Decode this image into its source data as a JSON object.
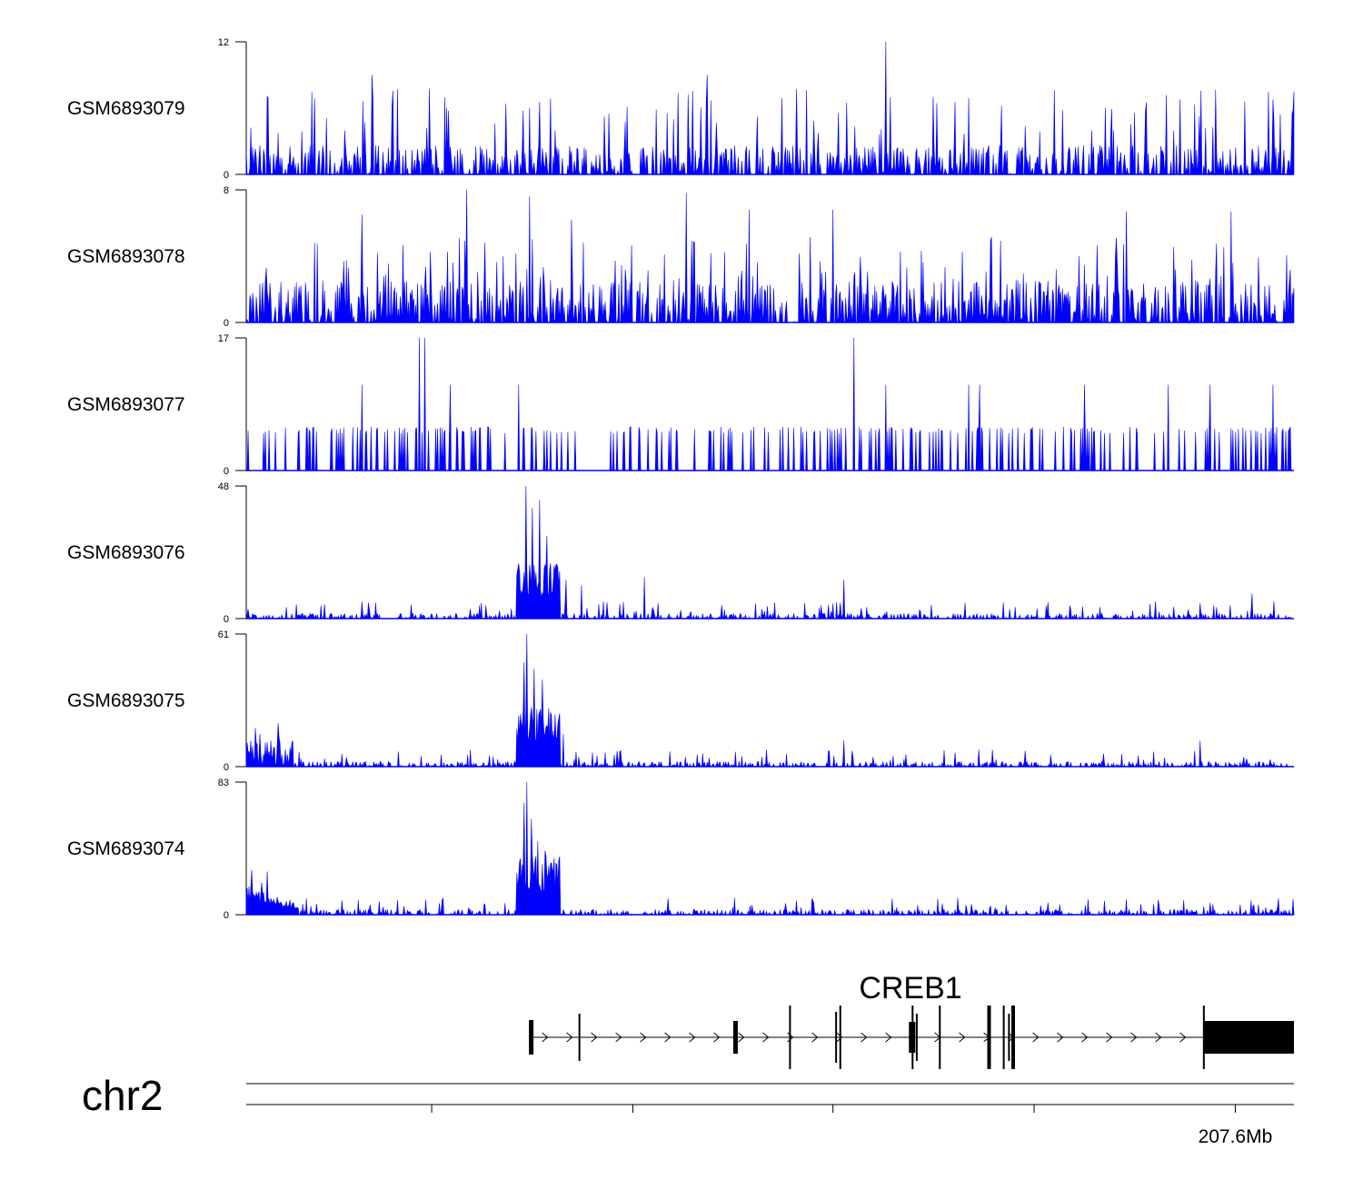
{
  "colors": {
    "signal": "#0000ff",
    "axis": "#000000",
    "gene": "#000000",
    "background": "#ffffff"
  },
  "chart_data": {
    "type": "area",
    "chromosome": "chr2",
    "coordinate_label": "207.6Mb",
    "tracks": [
      {
        "name": "GSM6893079",
        "ymax": "12",
        "ymin": "0",
        "ymax_value": 12,
        "peaks": [
          [
            0.12,
            9
          ],
          [
            0.27,
            6
          ],
          [
            0.44,
            9
          ],
          [
            0.61,
            12
          ],
          [
            0.615,
            7
          ],
          [
            0.82,
            6
          ],
          [
            1.0,
            7.5
          ]
        ]
      },
      {
        "name": "GSM6893078",
        "ymax": "8",
        "ymin": "0",
        "ymax_value": 8,
        "peaks": [
          [
            0.11,
            6.5
          ],
          [
            0.21,
            8
          ],
          [
            0.27,
            7.6
          ],
          [
            0.31,
            6.2
          ],
          [
            0.42,
            7.8
          ],
          [
            0.48,
            6.8
          ],
          [
            0.56,
            6.8
          ],
          [
            0.84,
            6.7
          ],
          [
            0.94,
            6.7
          ]
        ]
      },
      {
        "name": "GSM6893077",
        "ymax": "17",
        "ymin": "0",
        "ymax_value": 17,
        "peaks": [
          [
            0.11,
            11
          ],
          [
            0.165,
            17
          ],
          [
            0.17,
            17
          ],
          [
            0.195,
            11
          ],
          [
            0.26,
            11
          ],
          [
            0.58,
            17
          ],
          [
            0.61,
            11
          ],
          [
            0.69,
            11
          ],
          [
            0.7,
            11
          ],
          [
            0.8,
            11
          ],
          [
            0.88,
            11
          ],
          [
            0.92,
            11
          ],
          [
            0.98,
            11
          ]
        ]
      },
      {
        "name": "GSM6893076",
        "ymax": "48",
        "ymin": "0",
        "ymax_value": 48,
        "peaks": [
          [
            0.267,
            48
          ],
          [
            0.273,
            40
          ],
          [
            0.28,
            43
          ],
          [
            0.287,
            30
          ],
          [
            0.29,
            20
          ],
          [
            0.305,
            14
          ],
          [
            0.32,
            12
          ],
          [
            0.38,
            15
          ],
          [
            0.57,
            14
          ],
          [
            0.96,
            9
          ]
        ]
      },
      {
        "name": "GSM6893075",
        "ymax": "61",
        "ymin": "0",
        "ymax_value": 61,
        "peaks": [
          [
            0.013,
            15
          ],
          [
            0.03,
            20
          ],
          [
            0.265,
            48
          ],
          [
            0.268,
            61
          ],
          [
            0.275,
            45
          ],
          [
            0.283,
            40
          ],
          [
            0.29,
            25
          ],
          [
            0.303,
            15
          ],
          [
            0.57,
            12
          ],
          [
            0.91,
            12
          ]
        ]
      },
      {
        "name": "GSM6893074",
        "ymax": "83",
        "ymin": "0",
        "ymax_value": 83,
        "peaks": [
          [
            0.005,
            28
          ],
          [
            0.015,
            20
          ],
          [
            0.02,
            27
          ],
          [
            0.265,
            70
          ],
          [
            0.268,
            83
          ],
          [
            0.272,
            60
          ],
          [
            0.278,
            46
          ],
          [
            0.285,
            40
          ],
          [
            0.29,
            32
          ]
        ]
      }
    ],
    "gene": {
      "name": "CREB1",
      "exons": [
        0.272,
        0.318,
        0.467,
        0.519,
        0.563,
        0.567,
        0.636,
        0.64,
        0.662,
        0.709,
        0.723,
        0.728,
        0.732
      ]
    },
    "axis_ticks": [
      0.177,
      0.369,
      0.56,
      0.752,
      0.944
    ],
    "labeled_tick_index": 4
  }
}
